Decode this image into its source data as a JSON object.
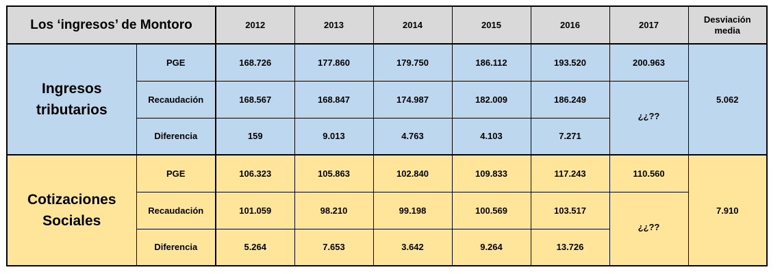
{
  "table": {
    "title": "Los ‘ingresos’ de Montoro",
    "years": [
      "2012",
      "2013",
      "2014",
      "2015",
      "2016",
      "2017"
    ],
    "deviation_header_line1": "Desviación",
    "deviation_header_line2": "media",
    "colors": {
      "header": "#d9d9d9",
      "tributarios": "#bdd7ee",
      "sociales": "#fee599"
    },
    "groups": [
      {
        "label_line1": "Ingresos",
        "label_line2": "tributarios",
        "deviation": "5.062",
        "rows": [
          {
            "label": "PGE",
            "values": [
              "168.726",
              "177.860",
              "179.750",
              "186.112",
              "193.520"
            ],
            "v2017": "200.963"
          },
          {
            "label": "Recaudación",
            "values": [
              "168.567",
              "168.847",
              "174.987",
              "182.009",
              "186.249"
            ]
          },
          {
            "label": "Diferencia",
            "values": [
              "159",
              "9.013",
              "4.763",
              "4.103",
              "7.271"
            ]
          }
        ],
        "unknown_2017": "¿¿??"
      },
      {
        "label_line1": "Cotizaciones",
        "label_line2": "Sociales",
        "deviation": "7.910",
        "rows": [
          {
            "label": "PGE",
            "values": [
              "106.323",
              "105.863",
              "102.840",
              "109.833",
              "117.243"
            ],
            "v2017": "110.560"
          },
          {
            "label": "Recaudación",
            "values": [
              "101.059",
              "98.210",
              "99.198",
              "100.569",
              "103.517"
            ]
          },
          {
            "label": "Diferencia",
            "values": [
              "5.264",
              "7.653",
              "3.642",
              "9.264",
              "13.726"
            ]
          }
        ],
        "unknown_2017": "¿¿??"
      }
    ]
  }
}
